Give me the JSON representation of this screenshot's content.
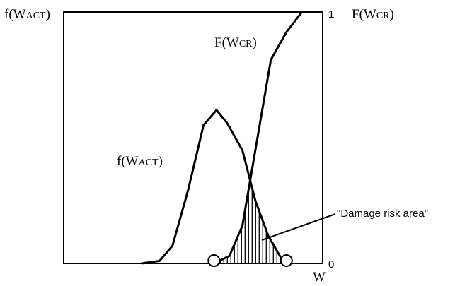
{
  "chart_data": {
    "type": "line",
    "x_axis": {
      "label": "W",
      "range": [
        0,
        100
      ]
    },
    "left_axis": {
      "label": "f(WACT)",
      "label_parts": [
        "f(W",
        "ACT",
        ")"
      ],
      "range": [
        0,
        1
      ]
    },
    "right_axis": {
      "label": "F(WCR)",
      "label_parts": [
        "F(W",
        "CR",
        ")"
      ],
      "range": [
        0,
        1
      ],
      "ticks": [
        {
          "value": 1,
          "label": "1"
        },
        {
          "value": 0,
          "label": "0"
        }
      ]
    },
    "grid": false,
    "series": [
      {
        "name": "f(WACT)",
        "name_parts": [
          "f(W",
          "ACT",
          ")"
        ],
        "points": [
          {
            "x": 30,
            "y": 0.0
          },
          {
            "x": 37,
            "y": 0.01
          },
          {
            "x": 42,
            "y": 0.07
          },
          {
            "x": 48,
            "y": 0.29
          },
          {
            "x": 54,
            "y": 0.55
          },
          {
            "x": 59,
            "y": 0.61
          },
          {
            "x": 63,
            "y": 0.56
          },
          {
            "x": 69,
            "y": 0.45
          },
          {
            "x": 74,
            "y": 0.25
          },
          {
            "x": 79,
            "y": 0.11
          },
          {
            "x": 84,
            "y": 0.02
          },
          {
            "x": 86,
            "y": 0.0
          }
        ]
      },
      {
        "name": "F(WCR)",
        "name_parts": [
          "F(W",
          "CR",
          ")"
        ],
        "points": [
          {
            "x": 58,
            "y": 0.0
          },
          {
            "x": 64,
            "y": 0.03
          },
          {
            "x": 69,
            "y": 0.15
          },
          {
            "x": 74,
            "y": 0.45
          },
          {
            "x": 80,
            "y": 0.81
          },
          {
            "x": 86,
            "y": 0.92
          },
          {
            "x": 92,
            "y": 1.0
          }
        ]
      }
    ],
    "markers": [
      {
        "x": 58,
        "y": 0
      },
      {
        "x": 86,
        "y": 0
      }
    ],
    "annotations": [
      {
        "text": "\"Damage risk area\""
      }
    ]
  }
}
